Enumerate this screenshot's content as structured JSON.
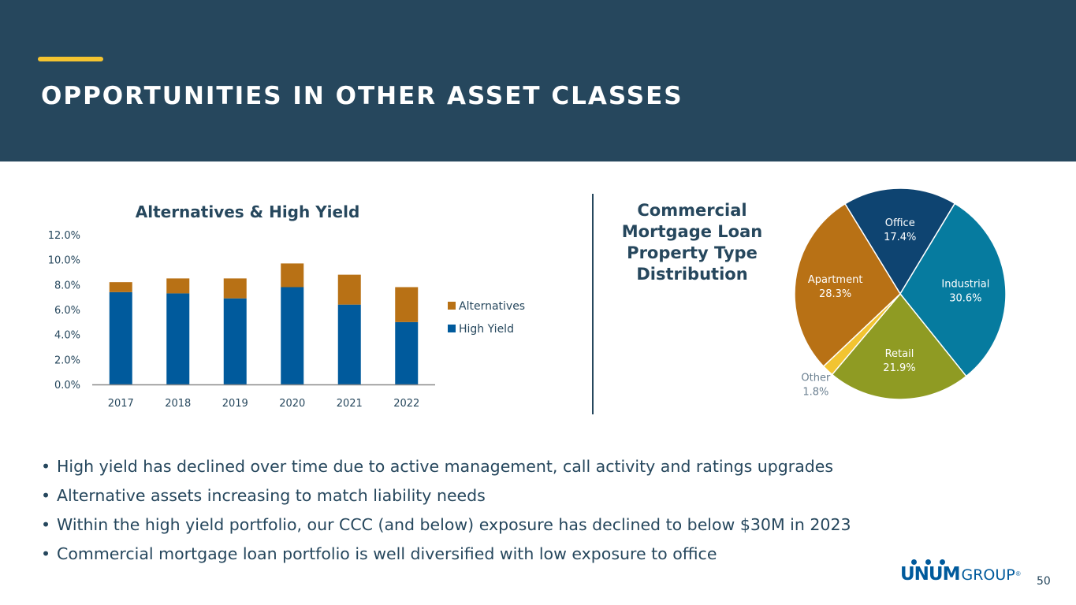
{
  "header": {
    "title": "OPPORTUNITIES IN OTHER ASSET CLASSES"
  },
  "colors": {
    "header_bg": "#26475d",
    "accent": "#f4c430",
    "high_yield": "#005a9c",
    "alternatives": "#b87115",
    "office": "#0e4471",
    "industrial": "#067b9f",
    "retail": "#8f9b23",
    "other": "#f2c431",
    "apartment": "#b87115"
  },
  "chart_data": [
    {
      "type": "bar",
      "stacked": true,
      "title": "Alternatives & High Yield",
      "categories": [
        "2017",
        "2018",
        "2019",
        "2020",
        "2021",
        "2022"
      ],
      "series": [
        {
          "name": "High Yield",
          "values": [
            7.4,
            7.3,
            6.9,
            7.8,
            6.4,
            5.0
          ]
        },
        {
          "name": "Alternatives",
          "values": [
            0.8,
            1.2,
            1.6,
            1.9,
            2.4,
            2.8
          ]
        }
      ],
      "legend": [
        "Alternatives",
        "High Yield"
      ],
      "ylim": [
        0,
        12
      ],
      "yticks": [
        "0.0%",
        "2.0%",
        "4.0%",
        "6.0%",
        "8.0%",
        "10.0%",
        "12.0%"
      ],
      "xlabel": "",
      "ylabel": "",
      "grid": false,
      "legend_position": "right"
    },
    {
      "type": "pie",
      "title": "Commercial Mortgage Loan Property Type Distribution",
      "slices": [
        {
          "label": "Office",
          "value": 17.4,
          "display": "17.4%"
        },
        {
          "label": "Industrial",
          "value": 30.6,
          "display": "30.6%"
        },
        {
          "label": "Retail",
          "value": 21.9,
          "display": "21.9%"
        },
        {
          "label": "Other",
          "value": 1.8,
          "display": "1.8%"
        },
        {
          "label": "Apartment",
          "value": 28.3,
          "display": "28.3%"
        }
      ]
    }
  ],
  "bullets": [
    "High yield has declined over time due to active management, call activity and ratings upgrades",
    "Alternative assets increasing to match liability needs",
    "Within the high yield portfolio, our CCC (and below) exposure has declined to below $30M in 2023",
    "Commercial mortgage loan portfolio is well diversified with low exposure to office"
  ],
  "footer": {
    "logo_mark": "UNUM",
    "logo_word": "GROUP",
    "logo_reg": "®",
    "page_number": "50"
  }
}
